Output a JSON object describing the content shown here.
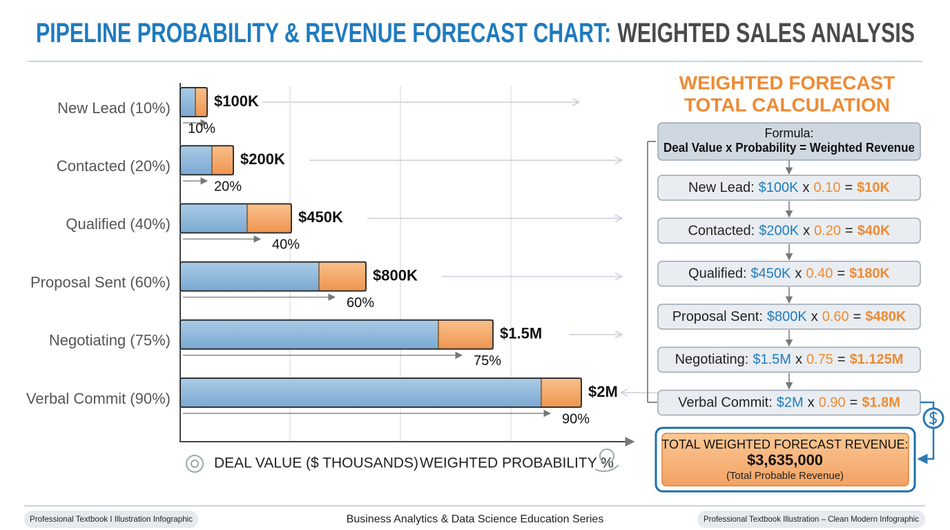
{
  "title": {
    "main": "PIPELINE PROBABILITY & REVENUE FORECAST CHART:",
    "sub": "WEIGHTED SALES ANALYSIS"
  },
  "chart": {
    "stages": [
      {
        "label": "New Lead (10%)",
        "value": "$100K",
        "probability": "10%"
      },
      {
        "label": "Contacted (20%)",
        "value": "$200K",
        "probability": "20%"
      },
      {
        "label": "Qualified (40%)",
        "value": "$450K",
        "probability": "40%"
      },
      {
        "label": "Proposal Sent (60%)",
        "value": "$800K",
        "probability": "60%"
      },
      {
        "label": "Negotiating (75%)",
        "value": "$1.5M",
        "probability": "75%"
      },
      {
        "label": "Verbal Commit (90%)",
        "value": "$2M",
        "probability": "90%"
      }
    ],
    "x_axis_labels": [
      "DEAL VALUE ($ THOUSANDS)",
      "WEIGHTED PROBABILITY %"
    ]
  },
  "calculation": {
    "title": [
      "WEIGHTED FORECAST",
      "TOTAL CALCULATION"
    ],
    "formula": {
      "label": "Formula:",
      "text": "Deal Value x Probability = Weighted Revenue"
    },
    "steps": [
      {
        "stage": "New Lead:",
        "value": "$100K",
        "times": "x",
        "probability": "0.10",
        "equals": "=",
        "result": "$10K"
      },
      {
        "stage": "Contacted:",
        "value": "$200K",
        "times": "x",
        "probability": "0.20",
        "equals": "=",
        "result": "$40K"
      },
      {
        "stage": "Qualified:",
        "value": "$450K",
        "times": "x",
        "probability": "0.40",
        "equals": "=",
        "result": "$180K"
      },
      {
        "stage": "Proposal Sent:",
        "value": "$800K",
        "times": "x",
        "probability": "0.60",
        "equals": "=",
        "result": "$480K"
      },
      {
        "stage": "Negotiating:",
        "value": "$1.5M",
        "times": "x",
        "probability": "0.75",
        "equals": "=",
        "result": "$1.125M"
      },
      {
        "stage": "Verbal Commit:",
        "value": "$2M",
        "times": "x",
        "probability": "0.90",
        "equals": "=",
        "result": "$1.8M"
      }
    ],
    "total": {
      "label": "TOTAL WEIGHTED FORECAST REVENUE:",
      "value": "$3,635,000",
      "note": "(Total Probable Revenue)"
    }
  },
  "footer": {
    "left": "Professional Textbook I Illustration Infographic",
    "center": "Business Analytics & Data Science Education Series",
    "right": "Professional Textbook Illustration – Clean Modern Infographic"
  }
}
